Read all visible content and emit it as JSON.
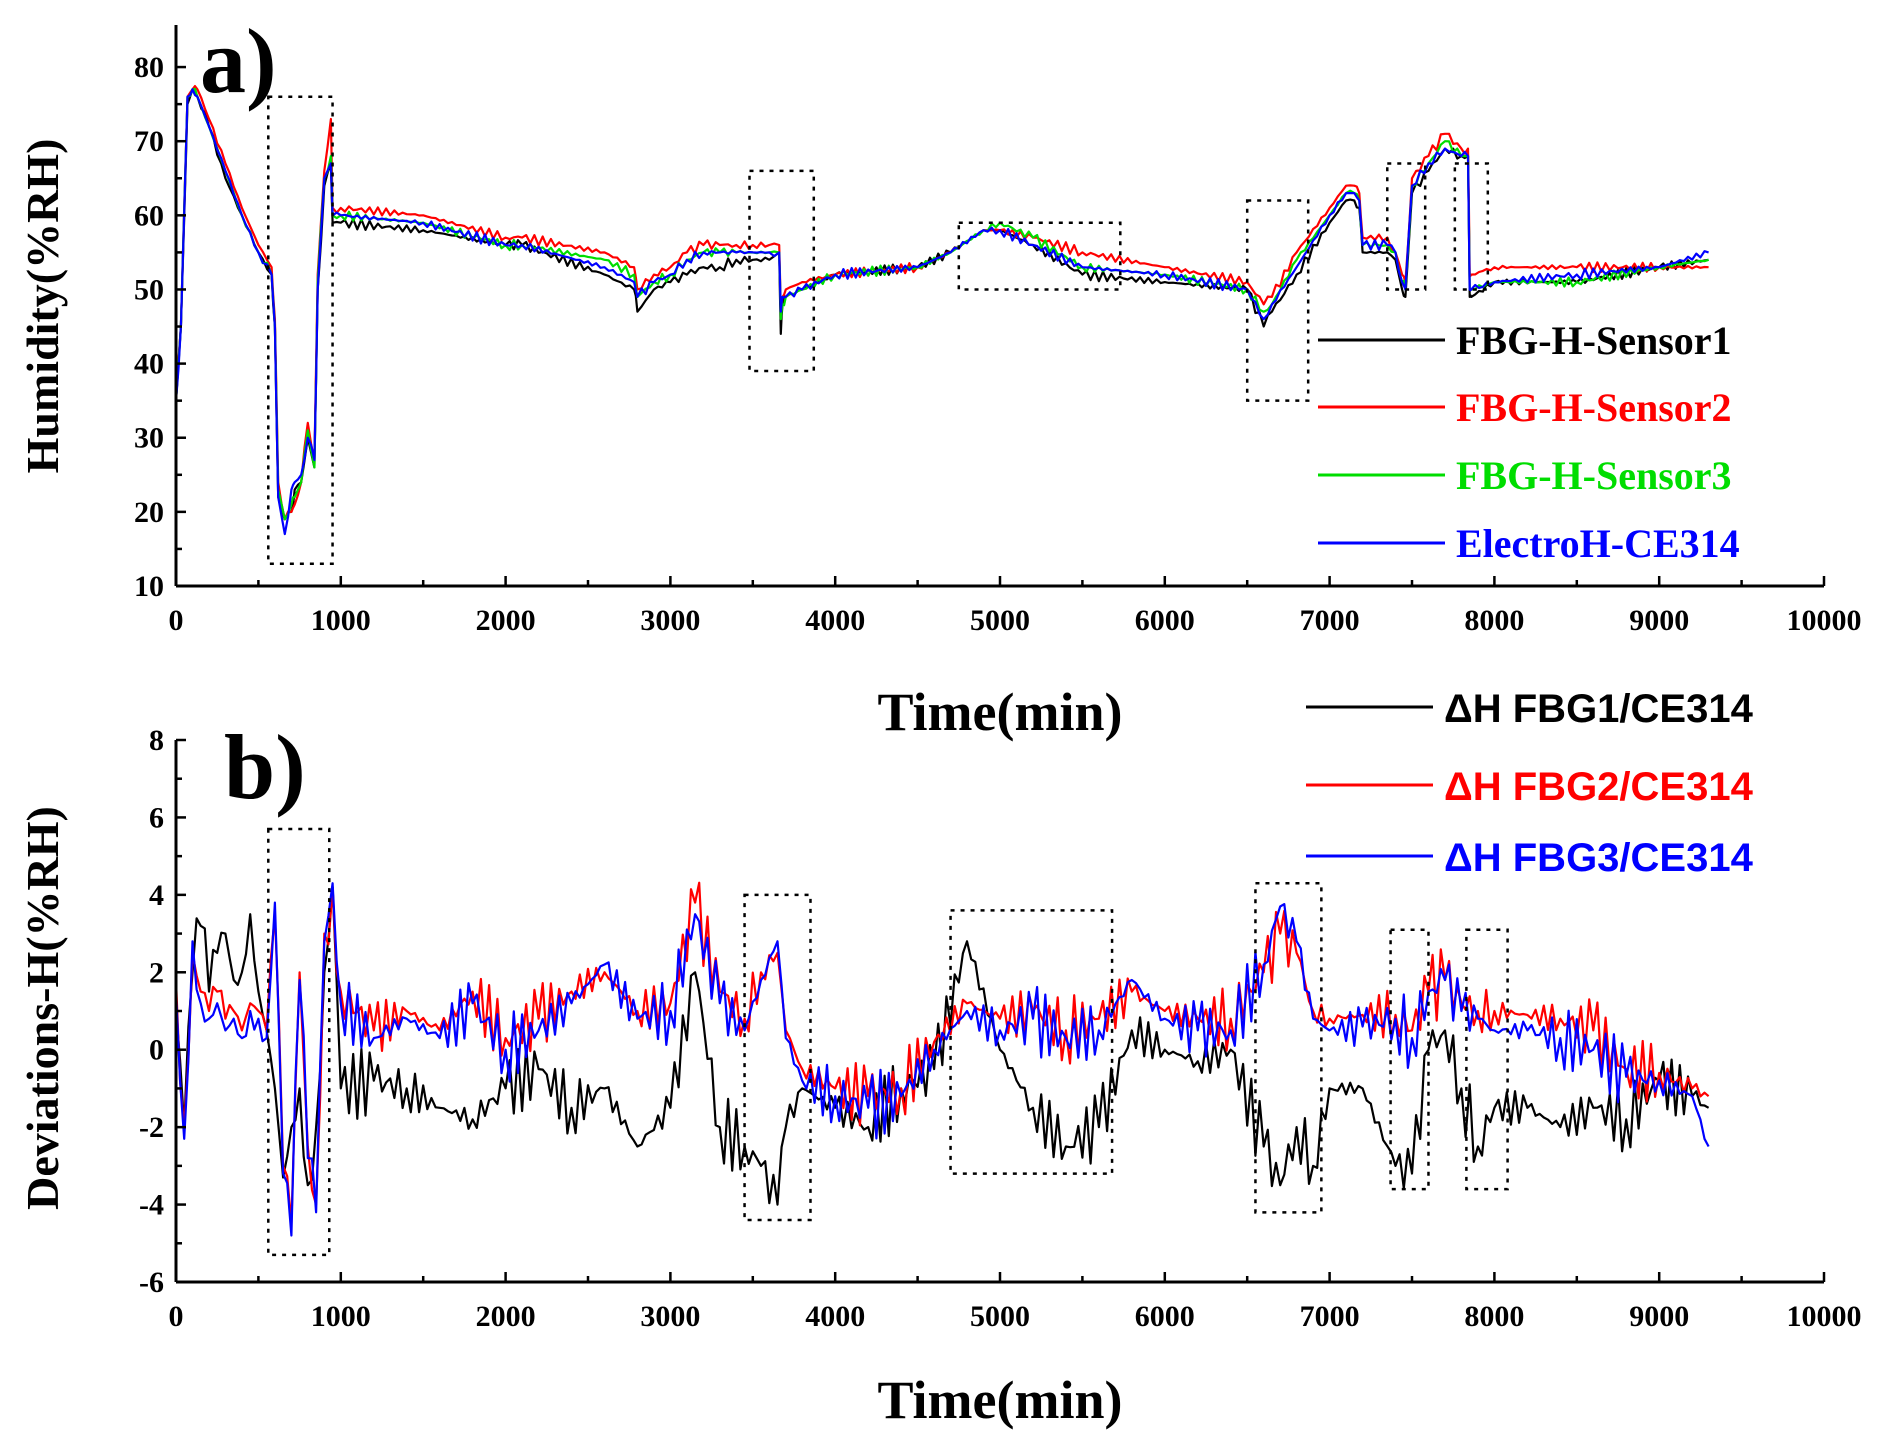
{
  "colors": {
    "s1": "#000000",
    "s2": "#ff0000",
    "s3": "#00dd00",
    "ref": "#0000ff"
  },
  "chart_data": [
    {
      "type": "line",
      "panel": "a)",
      "xlabel": "Time(min)",
      "ylabel": "Humidity(%RH)",
      "xlim": [
        0,
        10000
      ],
      "ylim": [
        10,
        85
      ],
      "xticks": [
        0,
        1000,
        2000,
        3000,
        4000,
        5000,
        6000,
        7000,
        8000,
        9000,
        10000
      ],
      "yticks": [
        10,
        20,
        30,
        40,
        50,
        60,
        70,
        80
      ],
      "legend_position": "right",
      "x": [
        0,
        30,
        70,
        100,
        130,
        200,
        300,
        400,
        500,
        580,
        600,
        620,
        660,
        700,
        720,
        760,
        800,
        840,
        860,
        900,
        940,
        950,
        1000,
        1500,
        2000,
        2100,
        2600,
        2780,
        2800,
        2900,
        3000,
        3100,
        3200,
        3300,
        3400,
        3500,
        3600,
        3660,
        3670,
        3680,
        3700,
        3800,
        4000,
        4500,
        4700,
        4900,
        5000,
        5200,
        5500,
        6000,
        6500,
        6600,
        6650,
        6800,
        7000,
        7100,
        7150,
        7180,
        7200,
        7350,
        7400,
        7440,
        7460,
        7500,
        7600,
        7700,
        7800,
        7840,
        7850,
        7860,
        8000,
        8500,
        9000,
        9300
      ],
      "series": [
        {
          "name": "FBG-H-Sensor1",
          "color": "#000000",
          "values": [
            35,
            45,
            75,
            77,
            76,
            72,
            65,
            60,
            55,
            52,
            45,
            22,
            19,
            20,
            23,
            24,
            30,
            26,
            50,
            64,
            67,
            59,
            59,
            58,
            56,
            56,
            52,
            50,
            47,
            50,
            51,
            52,
            53,
            53,
            54,
            54,
            54,
            55,
            44,
            48,
            49,
            50,
            52,
            53,
            55,
            58,
            58,
            56,
            52,
            51,
            50,
            45,
            47,
            52,
            59,
            62,
            62,
            61,
            55,
            55,
            54,
            50,
            49,
            63,
            66,
            69,
            68,
            68,
            49,
            49,
            51,
            51,
            53,
            54
          ]
        },
        {
          "name": "FBG-H-Sensor2",
          "color": "#ff0000",
          "values": [
            35,
            45,
            76,
            77,
            77,
            73,
            67,
            61,
            56,
            53,
            46,
            24,
            19,
            20,
            21,
            24,
            32,
            27,
            52,
            66,
            73,
            61,
            61,
            60,
            57,
            57,
            55,
            53,
            50,
            52,
            53,
            55,
            56,
            56,
            56,
            56,
            56,
            56,
            47,
            49,
            50,
            51,
            52,
            53,
            55,
            58,
            58,
            57,
            55,
            53,
            51,
            48,
            49,
            55,
            61,
            64,
            64,
            63,
            57,
            57,
            55,
            52,
            51,
            65,
            68,
            71,
            69,
            69,
            52,
            52,
            53,
            53,
            53,
            53
          ]
        },
        {
          "name": "FBG-H-Sensor3",
          "color": "#00dd00",
          "values": [
            35,
            45,
            76,
            77,
            76,
            72,
            66,
            60,
            55,
            52,
            45,
            23,
            19,
            21,
            22,
            24,
            31,
            26,
            51,
            65,
            68,
            60,
            60,
            59,
            56,
            56,
            54,
            52,
            49,
            51,
            52,
            54,
            55,
            55,
            55,
            55,
            55,
            55,
            46,
            48,
            49,
            50,
            52,
            53,
            55,
            58,
            59,
            57,
            53,
            52,
            50,
            47,
            48,
            54,
            60,
            63,
            63,
            62,
            56,
            56,
            55,
            51,
            50,
            64,
            67,
            70,
            68,
            68,
            50,
            50,
            51,
            51,
            53,
            54
          ]
        },
        {
          "name": "ElectroH-CE314",
          "color": "#0000ff",
          "values": [
            35,
            45,
            76,
            77,
            76,
            72,
            66,
            60,
            55,
            52,
            45,
            22,
            17,
            23,
            24,
            25,
            30,
            27,
            50,
            65,
            67,
            60,
            60,
            59,
            56,
            56,
            53,
            51,
            49,
            51,
            52,
            54,
            55,
            55,
            55,
            55,
            55,
            55,
            47,
            49,
            49,
            50,
            52,
            53,
            55,
            58,
            58,
            56,
            53,
            52,
            50,
            46,
            48,
            53,
            60,
            63,
            63,
            62,
            56,
            56,
            55,
            51,
            50,
            64,
            67,
            69,
            68,
            68,
            50,
            50,
            51,
            52,
            53,
            55
          ]
        }
      ],
      "annotations": [
        {
          "x": [
            560,
            950
          ],
          "y": [
            13,
            76
          ]
        },
        {
          "x": [
            3480,
            3870
          ],
          "y": [
            39,
            66
          ]
        },
        {
          "x": [
            4750,
            5730
          ],
          "y": [
            50,
            59
          ]
        },
        {
          "x": [
            6500,
            6870
          ],
          "y": [
            35,
            62
          ]
        },
        {
          "x": [
            7350,
            7580
          ],
          "y": [
            50,
            67
          ]
        },
        {
          "x": [
            7760,
            7960
          ],
          "y": [
            50,
            67
          ]
        }
      ]
    },
    {
      "type": "line",
      "panel": "b)",
      "xlabel": "Time(min)",
      "ylabel": "Deviations-H(%RH)",
      "xlim": [
        0,
        10000
      ],
      "ylim": [
        -6,
        8
      ],
      "xticks": [
        0,
        1000,
        2000,
        3000,
        4000,
        5000,
        6000,
        7000,
        8000,
        9000,
        10000
      ],
      "yticks": [
        -6,
        -4,
        -2,
        0,
        2,
        4,
        6,
        8
      ],
      "legend_position": "top-right",
      "x": [
        0,
        50,
        100,
        150,
        200,
        250,
        300,
        350,
        400,
        450,
        500,
        550,
        600,
        650,
        700,
        750,
        800,
        850,
        900,
        950,
        1000,
        1200,
        1400,
        1600,
        1800,
        2000,
        2200,
        2400,
        2600,
        2800,
        3000,
        3150,
        3300,
        3450,
        3550,
        3650,
        3700,
        3800,
        4000,
        4200,
        4400,
        4600,
        4800,
        5000,
        5200,
        5400,
        5600,
        5800,
        6000,
        6200,
        6400,
        6600,
        6700,
        6800,
        6900,
        7000,
        7200,
        7400,
        7500,
        7600,
        7700,
        7800,
        7900,
        8000,
        8200,
        8400,
        8600,
        8800,
        9000,
        9200,
        9300
      ],
      "series": [
        {
          "name": "ΔH FBG1/CE314",
          "color": "#000000",
          "values": [
            1.0,
            -2.0,
            2.0,
            3.2,
            1.5,
            2.5,
            3.0,
            1.8,
            2.0,
            3.5,
            1.5,
            0.5,
            -1.0,
            -3.3,
            -2.0,
            -1.0,
            -3.5,
            -2.0,
            2.0,
            4.2,
            -1.0,
            -0.8,
            -1.0,
            -1.5,
            -1.8,
            -1.0,
            -0.5,
            -1.5,
            -1.0,
            -2.5,
            -1.5,
            2.0,
            -2.0,
            -2.5,
            -3.0,
            -4.0,
            -2.0,
            -1.0,
            -1.5,
            -2.0,
            -1.0,
            -0.5,
            2.8,
            0.0,
            -1.5,
            -2.5,
            -2.0,
            0.5,
            0.0,
            -0.3,
            0.0,
            -2.5,
            -3.5,
            -2.0,
            -3.0,
            -1.0,
            -1.0,
            -3.0,
            -3.2,
            0.0,
            0.5,
            -1.0,
            -2.5,
            -1.5,
            -1.5,
            -2.0,
            -1.5,
            -1.8,
            -0.8,
            -1.2,
            -1.5
          ]
        },
        {
          "name": "ΔH FBG2/CE314",
          "color": "#ff0000",
          "values": [
            1.8,
            -2.0,
            2.5,
            1.5,
            1.0,
            1.5,
            0.8,
            1.0,
            0.5,
            1.2,
            1.0,
            0.5,
            3.5,
            -3.0,
            -4.5,
            2.0,
            -2.5,
            -4.0,
            3.0,
            4.2,
            1.5,
            0.5,
            1.0,
            0.5,
            1.5,
            0.3,
            0.8,
            1.5,
            2.0,
            1.0,
            1.2,
            3.8,
            1.5,
            0.8,
            2.0,
            2.5,
            0.5,
            -0.5,
            -1.0,
            -1.2,
            -1.0,
            0.2,
            1.2,
            0.8,
            1.0,
            0.5,
            0.8,
            1.5,
            1.0,
            0.8,
            0.8,
            2.0,
            3.0,
            2.5,
            1.0,
            0.8,
            0.9,
            0.9,
            0.5,
            1.5,
            1.8,
            1.2,
            1.0,
            1.0,
            0.9,
            0.8,
            0.5,
            -0.5,
            -0.6,
            -1.0,
            -1.2
          ]
        },
        {
          "name": "ΔH FBG3/CE314",
          "color": "#0000ff",
          "values": [
            1.5,
            -2.3,
            2.8,
            1.2,
            0.8,
            1.2,
            0.5,
            0.8,
            0.3,
            1.0,
            0.8,
            0.3,
            3.8,
            -3.2,
            -4.8,
            1.8,
            -2.8,
            -4.2,
            2.8,
            4.3,
            1.2,
            0.3,
            0.8,
            0.3,
            1.2,
            0.0,
            0.5,
            1.2,
            2.2,
            0.8,
            1.0,
            3.5,
            1.2,
            0.5,
            1.8,
            2.8,
            0.3,
            -0.8,
            -1.2,
            -1.5,
            -1.2,
            0.0,
            1.0,
            0.5,
            0.8,
            0.3,
            0.5,
            1.8,
            0.8,
            0.5,
            0.5,
            2.2,
            3.7,
            2.8,
            0.8,
            0.5,
            0.6,
            0.8,
            0.3,
            1.5,
            1.8,
            1.0,
            0.8,
            0.5,
            0.5,
            0.3,
            0.0,
            -0.7,
            -0.8,
            -1.2,
            -2.5
          ]
        }
      ],
      "annotations": [
        {
          "x": [
            560,
            930
          ],
          "y": [
            -5.3,
            5.7
          ]
        },
        {
          "x": [
            3450,
            3850
          ],
          "y": [
            -4.4,
            4.0
          ]
        },
        {
          "x": [
            4700,
            5680
          ],
          "y": [
            -3.2,
            3.6
          ]
        },
        {
          "x": [
            6550,
            6950
          ],
          "y": [
            -4.2,
            4.3
          ]
        },
        {
          "x": [
            7370,
            7600
          ],
          "y": [
            -3.6,
            3.1
          ]
        },
        {
          "x": [
            7830,
            8080
          ],
          "y": [
            -3.6,
            3.1
          ]
        }
      ]
    }
  ]
}
